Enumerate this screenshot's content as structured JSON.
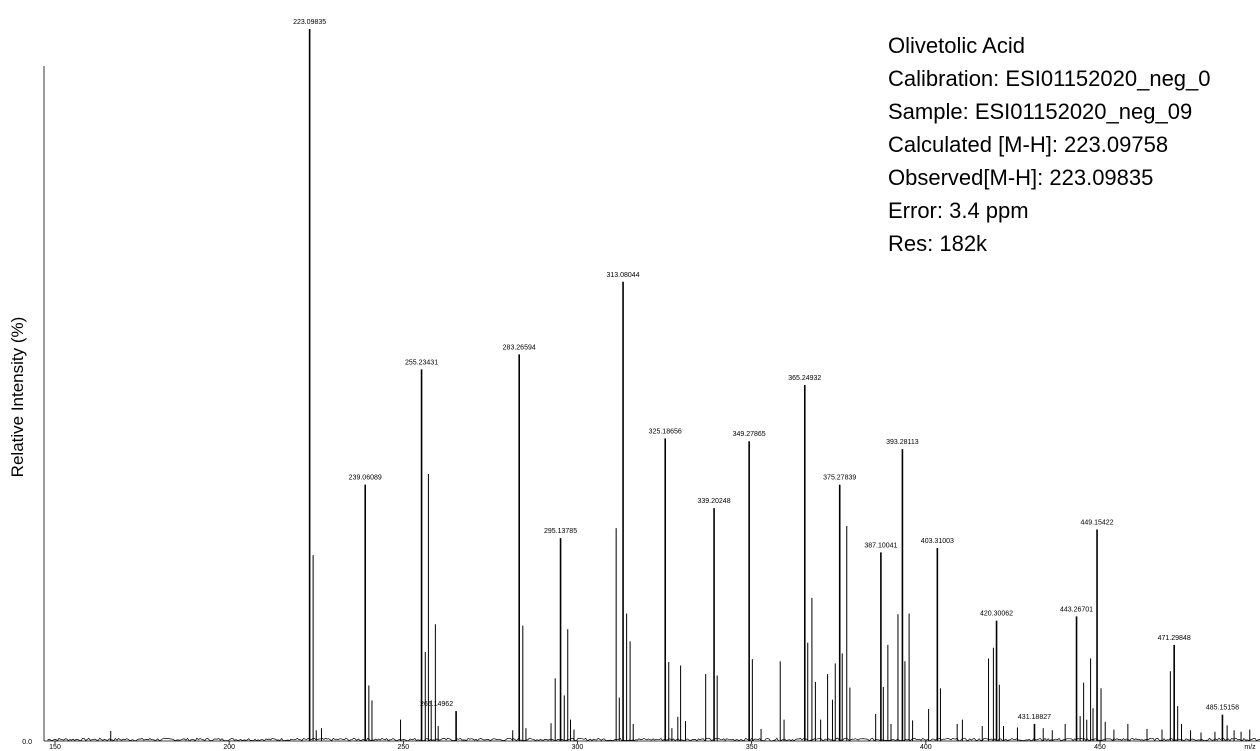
{
  "chart_data": {
    "type": "bar",
    "subtype": "mass-spectrum",
    "title": "",
    "xlabel": "m/z",
    "ylabel": "Relative Intensity (%)",
    "xlim": [
      148,
      245
    ],
    "ylim": [
      0,
      100
    ],
    "x_ticks": [
      "150",
      "200",
      "250",
      "300",
      "350",
      "400",
      "450",
      "m/z"
    ],
    "y_ticks": [
      "0.0"
    ],
    "info_box": [
      "Olivetolic Acid",
      "Calibration: ESI01152020_neg_0",
      "Sample: ESI01152020_neg_09",
      "Calculated [M-H]: 223.09758",
      "Observed[M-H]: 223.09835",
      "Error: 3.4 ppm",
      "Res: 182k"
    ],
    "labeled_peaks": [
      {
        "mz": 223.09835,
        "label": "223.09835",
        "intensity": 100.0
      },
      {
        "mz": 239.06089,
        "label": "239.06089",
        "intensity": 36.0
      },
      {
        "mz": 255.23431,
        "label": "255.23431",
        "intensity": 52.2
      },
      {
        "mz": 265.14962,
        "label": "265.14962",
        "intensity": 4.2
      },
      {
        "mz": 283.26594,
        "label": "283.26594",
        "intensity": 54.3
      },
      {
        "mz": 295.13785,
        "label": "295.13785",
        "intensity": 28.5
      },
      {
        "mz": 313.08044,
        "label": "313.08044",
        "intensity": 64.5
      },
      {
        "mz": 325.18656,
        "label": "325.18656",
        "intensity": 42.5
      },
      {
        "mz": 339.20248,
        "label": "339.20248",
        "intensity": 32.7
      },
      {
        "mz": 349.27865,
        "label": "349.27865",
        "intensity": 42.1
      },
      {
        "mz": 365.24932,
        "label": "365.24932",
        "intensity": 50.0
      },
      {
        "mz": 375.27839,
        "label": "375.27839",
        "intensity": 36.0
      },
      {
        "mz": 387.10041,
        "label": "387.10041",
        "intensity": 26.5
      },
      {
        "mz": 393.28113,
        "label": "393.28113",
        "intensity": 41.0
      },
      {
        "mz": 403.31003,
        "label": "403.31003",
        "intensity": 27.1
      },
      {
        "mz": 420.30062,
        "label": "420.30062",
        "intensity": 16.9
      },
      {
        "mz": 431.18827,
        "label": "431.18827",
        "intensity": 2.4
      },
      {
        "mz": 443.26701,
        "label": "443.26701",
        "intensity": 17.5
      },
      {
        "mz": 449.15422,
        "label": "449.15422",
        "intensity": 29.7
      },
      {
        "mz": 471.29848,
        "label": "471.29848",
        "intensity": 13.5
      },
      {
        "mz": 485.15158,
        "label": "485.15158",
        "intensity": 3.7
      }
    ],
    "unlabeled_peaks": [
      {
        "mz": 166.0,
        "intensity": 1.4
      },
      {
        "mz": 224.1,
        "intensity": 26.1
      },
      {
        "mz": 225.0,
        "intensity": 1.5
      },
      {
        "mz": 226.5,
        "intensity": 1.8
      },
      {
        "mz": 240.1,
        "intensity": 7.8
      },
      {
        "mz": 241.0,
        "intensity": 5.7
      },
      {
        "mz": 249.2,
        "intensity": 3.0
      },
      {
        "mz": 256.3,
        "intensity": 12.5
      },
      {
        "mz": 257.2,
        "intensity": 37.5
      },
      {
        "mz": 258.0,
        "intensity": 5.7
      },
      {
        "mz": 259.2,
        "intensity": 16.4
      },
      {
        "mz": 260.0,
        "intensity": 2.1
      },
      {
        "mz": 281.4,
        "intensity": 1.5
      },
      {
        "mz": 284.3,
        "intensity": 16.2
      },
      {
        "mz": 285.2,
        "intensity": 1.8
      },
      {
        "mz": 292.4,
        "intensity": 2.5
      },
      {
        "mz": 293.6,
        "intensity": 8.8
      },
      {
        "mz": 296.2,
        "intensity": 6.4
      },
      {
        "mz": 297.2,
        "intensity": 15.7
      },
      {
        "mz": 298.0,
        "intensity": 3.0
      },
      {
        "mz": 299.0,
        "intensity": 1.6
      },
      {
        "mz": 311.1,
        "intensity": 29.9
      },
      {
        "mz": 312.0,
        "intensity": 6.1
      },
      {
        "mz": 314.1,
        "intensity": 17.9
      },
      {
        "mz": 315.1,
        "intensity": 14.0
      },
      {
        "mz": 316.0,
        "intensity": 2.4
      },
      {
        "mz": 326.2,
        "intensity": 11.1
      },
      {
        "mz": 327.1,
        "intensity": 1.8
      },
      {
        "mz": 328.8,
        "intensity": 3.4
      },
      {
        "mz": 329.6,
        "intensity": 10.6
      },
      {
        "mz": 331.0,
        "intensity": 2.8
      },
      {
        "mz": 336.8,
        "intensity": 9.4
      },
      {
        "mz": 340.1,
        "intensity": 9.2
      },
      {
        "mz": 350.2,
        "intensity": 11.5
      },
      {
        "mz": 352.7,
        "intensity": 1.7
      },
      {
        "mz": 358.2,
        "intensity": 11.2
      },
      {
        "mz": 359.3,
        "intensity": 3.0
      },
      {
        "mz": 366.1,
        "intensity": 13.8
      },
      {
        "mz": 367.3,
        "intensity": 20.1
      },
      {
        "mz": 368.3,
        "intensity": 8.3
      },
      {
        "mz": 369.8,
        "intensity": 3.0
      },
      {
        "mz": 371.8,
        "intensity": 9.4
      },
      {
        "mz": 373.2,
        "intensity": 5.8
      },
      {
        "mz": 374.0,
        "intensity": 10.9
      },
      {
        "mz": 376.0,
        "intensity": 12.3
      },
      {
        "mz": 377.3,
        "intensity": 30.2
      },
      {
        "mz": 378.2,
        "intensity": 7.5
      },
      {
        "mz": 385.6,
        "intensity": 3.8
      },
      {
        "mz": 387.8,
        "intensity": 7.6
      },
      {
        "mz": 389.1,
        "intensity": 13.5
      },
      {
        "mz": 390.0,
        "intensity": 2.4
      },
      {
        "mz": 392.0,
        "intensity": 17.8
      },
      {
        "mz": 394.0,
        "intensity": 11.2
      },
      {
        "mz": 395.2,
        "intensity": 17.9
      },
      {
        "mz": 396.2,
        "intensity": 2.9
      },
      {
        "mz": 400.8,
        "intensity": 4.5
      },
      {
        "mz": 404.2,
        "intensity": 7.4
      },
      {
        "mz": 409.0,
        "intensity": 2.4
      },
      {
        "mz": 410.5,
        "intensity": 3.0
      },
      {
        "mz": 416.2,
        "intensity": 2.1
      },
      {
        "mz": 418.0,
        "intensity": 11.6
      },
      {
        "mz": 419.4,
        "intensity": 13.1
      },
      {
        "mz": 421.1,
        "intensity": 7.9
      },
      {
        "mz": 422.3,
        "intensity": 2.1
      },
      {
        "mz": 426.3,
        "intensity": 1.9
      },
      {
        "mz": 431.2,
        "intensity": 2.4
      },
      {
        "mz": 433.7,
        "intensity": 1.8
      },
      {
        "mz": 436.3,
        "intensity": 1.5
      },
      {
        "mz": 440.0,
        "intensity": 2.4
      },
      {
        "mz": 444.3,
        "intensity": 3.5
      },
      {
        "mz": 445.3,
        "intensity": 8.2
      },
      {
        "mz": 446.2,
        "intensity": 3.0
      },
      {
        "mz": 447.3,
        "intensity": 11.6
      },
      {
        "mz": 448.0,
        "intensity": 4.6
      },
      {
        "mz": 450.3,
        "intensity": 7.4
      },
      {
        "mz": 451.5,
        "intensity": 2.7
      },
      {
        "mz": 454.0,
        "intensity": 1.6
      },
      {
        "mz": 458.0,
        "intensity": 2.4
      },
      {
        "mz": 463.5,
        "intensity": 1.7
      },
      {
        "mz": 467.8,
        "intensity": 1.6
      },
      {
        "mz": 470.2,
        "intensity": 9.8
      },
      {
        "mz": 472.3,
        "intensity": 4.9
      },
      {
        "mz": 473.4,
        "intensity": 2.4
      },
      {
        "mz": 476.0,
        "intensity": 1.5
      },
      {
        "mz": 479.0,
        "intensity": 1.2
      },
      {
        "mz": 483.0,
        "intensity": 1.3
      },
      {
        "mz": 486.5,
        "intensity": 2.2
      },
      {
        "mz": 488.5,
        "intensity": 1.5
      },
      {
        "mz": 490.5,
        "intensity": 1.3
      },
      {
        "mz": 493.0,
        "intensity": 1.6
      }
    ],
    "grid": false,
    "legend": "none"
  }
}
